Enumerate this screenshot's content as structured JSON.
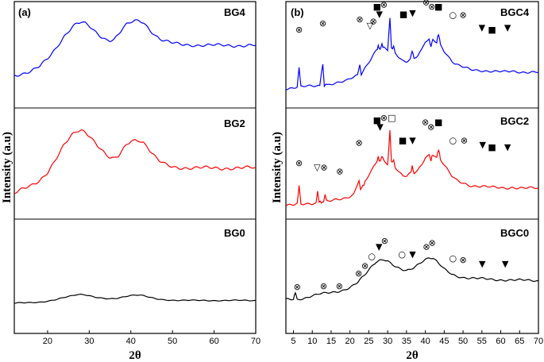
{
  "chart_data": [
    {
      "type": "line",
      "panel_label": "(a)",
      "xlabel": "2θ",
      "ylabel": "Intensity (a.u)",
      "xlim": [
        12,
        70
      ],
      "xticks": [
        20,
        30,
        40,
        50,
        60,
        70
      ],
      "legend": "none",
      "series": [
        {
          "name": "BG4",
          "color": "#0000ff",
          "x": [
            12,
            14,
            16,
            18,
            20,
            22,
            24,
            26,
            27,
            28,
            29,
            30,
            31,
            32,
            33,
            34,
            35,
            36,
            37,
            38,
            39,
            40,
            41,
            42,
            43,
            44,
            45,
            46,
            47,
            48,
            50,
            52,
            55,
            58,
            62,
            66,
            70
          ],
          "y": [
            0.05,
            0.08,
            0.12,
            0.2,
            0.35,
            0.55,
            0.78,
            0.95,
            1.0,
            1.02,
            1.0,
            0.95,
            0.88,
            0.82,
            0.76,
            0.72,
            0.7,
            0.72,
            0.8,
            0.9,
            0.98,
            1.02,
            1.05,
            1.06,
            1.03,
            0.95,
            0.86,
            0.78,
            0.72,
            0.68,
            0.64,
            0.62,
            0.61,
            0.6,
            0.6,
            0.6,
            0.6
          ]
        },
        {
          "name": "BG2",
          "color": "#ff0000",
          "x": [
            12,
            14,
            16,
            18,
            20,
            22,
            24,
            26,
            27,
            28,
            29,
            30,
            31,
            32,
            33,
            34,
            35,
            36,
            37,
            38,
            39,
            40,
            41,
            42,
            43,
            44,
            45,
            46,
            47,
            48,
            50,
            52,
            55,
            58,
            62,
            66,
            70
          ],
          "y": [
            0.05,
            0.1,
            0.14,
            0.22,
            0.38,
            0.6,
            0.82,
            0.97,
            1.02,
            1.04,
            1.02,
            0.97,
            0.9,
            0.82,
            0.74,
            0.66,
            0.6,
            0.58,
            0.62,
            0.72,
            0.82,
            0.88,
            0.9,
            0.9,
            0.86,
            0.78,
            0.68,
            0.6,
            0.54,
            0.5,
            0.46,
            0.45,
            0.44,
            0.44,
            0.44,
            0.44,
            0.44
          ]
        },
        {
          "name": "BG0",
          "color": "#000000",
          "x": [
            12,
            14,
            16,
            18,
            20,
            22,
            24,
            26,
            27,
            28,
            29,
            30,
            31,
            32,
            33,
            34,
            35,
            36,
            37,
            38,
            39,
            40,
            41,
            42,
            43,
            44,
            45,
            46,
            47,
            48,
            50,
            52,
            55,
            58,
            62,
            66,
            70
          ],
          "y": [
            0.0,
            0.02,
            0.04,
            0.07,
            0.12,
            0.2,
            0.32,
            0.44,
            0.5,
            0.52,
            0.5,
            0.44,
            0.38,
            0.32,
            0.28,
            0.25,
            0.24,
            0.26,
            0.3,
            0.36,
            0.42,
            0.46,
            0.48,
            0.47,
            0.43,
            0.36,
            0.3,
            0.25,
            0.22,
            0.2,
            0.18,
            0.17,
            0.16,
            0.16,
            0.16,
            0.16,
            0.16
          ]
        }
      ]
    },
    {
      "type": "line",
      "panel_label": "(b)",
      "xlabel": "2θ",
      "ylabel": "Intensity (a.u)",
      "xlim": [
        3,
        70
      ],
      "xticks": [
        5,
        10,
        15,
        20,
        25,
        30,
        35,
        40,
        45,
        50,
        55,
        60,
        65,
        70
      ],
      "legend": "none",
      "series": [
        {
          "name": "BGC4",
          "color": "#0000ff",
          "x": [
            3,
            5,
            6,
            6.5,
            7,
            9,
            12,
            12.8,
            13.2,
            14,
            17,
            19,
            20,
            21,
            22,
            22.6,
            23,
            24,
            25,
            26,
            27,
            27.5,
            28,
            28.5,
            29,
            30,
            30.6,
            31,
            31.6,
            32,
            33,
            34,
            35,
            36,
            36.5,
            37,
            38,
            39,
            40,
            41,
            41.5,
            42,
            43,
            43.5,
            44,
            45,
            46,
            47,
            48,
            49,
            50,
            52,
            55,
            58,
            61,
            63,
            66,
            70
          ],
          "y": [
            0.05,
            0.06,
            0.08,
            0.55,
            0.08,
            0.1,
            0.12,
            0.65,
            0.12,
            0.14,
            0.18,
            0.22,
            0.28,
            0.32,
            0.38,
            0.62,
            0.4,
            0.55,
            0.68,
            0.82,
            0.95,
            1.05,
            0.98,
            1.1,
            1.0,
            0.95,
            1.75,
            1.0,
            1.05,
            0.9,
            0.8,
            0.72,
            0.7,
            0.75,
            0.95,
            0.76,
            0.82,
            0.95,
            1.15,
            1.2,
            1.05,
            1.22,
            1.15,
            1.35,
            1.1,
            0.95,
            0.82,
            0.7,
            0.62,
            0.58,
            0.55,
            0.5,
            0.48,
            0.45,
            0.44,
            0.46,
            0.44,
            0.43
          ]
        },
        {
          "name": "BGC2",
          "color": "#ff0000",
          "x": [
            3,
            5,
            6,
            6.5,
            7,
            9,
            11,
            11.4,
            11.8,
            13,
            13.4,
            14,
            17,
            19,
            21,
            22.4,
            22.8,
            24,
            25,
            26,
            27,
            27.5,
            28,
            28.5,
            29,
            30,
            30.6,
            31,
            31.6,
            32,
            33,
            34,
            35,
            36,
            36.5,
            37,
            38,
            39,
            40,
            41,
            41.5,
            42,
            43,
            43.5,
            44,
            45,
            46,
            47,
            48,
            49,
            50,
            52,
            55,
            58,
            61,
            63,
            66,
            70
          ],
          "y": [
            0.05,
            0.06,
            0.08,
            0.5,
            0.08,
            0.1,
            0.12,
            0.35,
            0.12,
            0.14,
            0.3,
            0.14,
            0.18,
            0.22,
            0.32,
            0.62,
            0.4,
            0.58,
            0.72,
            0.85,
            1.0,
            1.12,
            1.02,
            1.15,
            1.05,
            0.98,
            1.7,
            1.02,
            1.05,
            0.92,
            0.8,
            0.72,
            0.7,
            0.75,
            0.92,
            0.76,
            0.82,
            0.95,
            1.12,
            1.18,
            1.05,
            1.2,
            1.12,
            1.3,
            1.08,
            0.95,
            0.82,
            0.7,
            0.62,
            0.58,
            0.55,
            0.5,
            0.48,
            0.45,
            0.44,
            0.46,
            0.44,
            0.43
          ]
        },
        {
          "name": "BGC0",
          "color": "#000000",
          "x": [
            3,
            5,
            5.5,
            6,
            8,
            10,
            12,
            14,
            16,
            18,
            20,
            22,
            23,
            24,
            25,
            26,
            27,
            28,
            29,
            30,
            31,
            32,
            33,
            34,
            35,
            36,
            37,
            38,
            39,
            40,
            41,
            42,
            43,
            44,
            45,
            46,
            47,
            48,
            50,
            52,
            55,
            58,
            62,
            66,
            70
          ],
          "y": [
            0.05,
            0.06,
            0.25,
            0.06,
            0.1,
            0.16,
            0.2,
            0.22,
            0.25,
            0.3,
            0.38,
            0.5,
            0.6,
            0.7,
            0.82,
            0.95,
            1.05,
            1.1,
            1.12,
            1.08,
            1.0,
            0.92,
            0.86,
            0.82,
            0.8,
            0.84,
            0.9,
            0.98,
            1.06,
            1.12,
            1.16,
            1.14,
            1.05,
            0.95,
            0.85,
            0.78,
            0.72,
            0.68,
            0.64,
            0.62,
            0.6,
            0.58,
            0.57,
            0.56,
            0.55
          ]
        }
      ]
    }
  ],
  "panels": {
    "a": {
      "label": "(a)",
      "xlabel": "2θ",
      "ylabel": "Intensity (a.u)",
      "sample_labels": [
        "BG4",
        "BG2",
        "BG0"
      ]
    },
    "b": {
      "label": "(b)",
      "xlabel": "2θ",
      "ylabel": "Intensity (a.u)",
      "sample_labels": [
        "BGC4",
        "BGC2",
        "BGC0"
      ]
    }
  },
  "phase_markers": {
    "BGC4": [
      {
        "symbol": "⊗",
        "x": 6.5,
        "y": 1.45
      },
      {
        "symbol": "⊗",
        "x": 12.8,
        "y": 1.6
      },
      {
        "symbol": "⊗",
        "x": 22.6,
        "y": 1.7
      },
      {
        "symbol": "▽",
        "x": 25.3,
        "y": 1.55
      },
      {
        "symbol": "⊗",
        "x": 26.2,
        "y": 1.65
      },
      {
        "symbol": "■",
        "x": 27.2,
        "y": 2.0
      },
      {
        "symbol": "▼",
        "x": 27.8,
        "y": 1.82
      },
      {
        "symbol": "⊗",
        "x": 29.0,
        "y": 2.05
      },
      {
        "symbol": "□",
        "x": 31.0,
        "y": 2.4
      },
      {
        "symbol": "■",
        "x": 34.2,
        "y": 1.82
      },
      {
        "symbol": "▼",
        "x": 36.6,
        "y": 1.85
      },
      {
        "symbol": "⊗",
        "x": 40.2,
        "y": 2.1
      },
      {
        "symbol": "⊗",
        "x": 41.7,
        "y": 2.0
      },
      {
        "symbol": "■",
        "x": 43.5,
        "y": 2.0
      },
      {
        "symbol": "○",
        "x": 47.3,
        "y": 1.8
      },
      {
        "symbol": "⊗",
        "x": 50.0,
        "y": 1.8
      },
      {
        "symbol": "▼",
        "x": 55.0,
        "y": 1.5
      },
      {
        "symbol": "■",
        "x": 57.7,
        "y": 1.45
      },
      {
        "symbol": "▼",
        "x": 61.8,
        "y": 1.5
      }
    ],
    "BGC2": [
      {
        "symbol": "⊗",
        "x": 6.5,
        "y": 1.0
      },
      {
        "symbol": "▽",
        "x": 11.3,
        "y": 0.9
      },
      {
        "symbol": "⊗",
        "x": 13.1,
        "y": 0.9
      },
      {
        "symbol": "⊗",
        "x": 17.3,
        "y": 0.82
      },
      {
        "symbol": "⊗",
        "x": 22.4,
        "y": 1.45
      },
      {
        "symbol": "■",
        "x": 27.2,
        "y": 1.95
      },
      {
        "symbol": "▼",
        "x": 28.0,
        "y": 1.8
      },
      {
        "symbol": "⊗",
        "x": 29.0,
        "y": 2.0
      },
      {
        "symbol": "□",
        "x": 31.1,
        "y": 2.0
      },
      {
        "symbol": "■",
        "x": 34.0,
        "y": 1.5
      },
      {
        "symbol": "▼",
        "x": 36.6,
        "y": 1.5
      },
      {
        "symbol": "⊗",
        "x": 40.0,
        "y": 1.9
      },
      {
        "symbol": "⊗",
        "x": 41.5,
        "y": 1.8
      },
      {
        "symbol": "■",
        "x": 43.5,
        "y": 1.9
      },
      {
        "symbol": "○",
        "x": 47.3,
        "y": 1.5
      },
      {
        "symbol": "⊗",
        "x": 50.3,
        "y": 1.5
      },
      {
        "symbol": "▼",
        "x": 55.2,
        "y": 1.4
      },
      {
        "symbol": "■",
        "x": 57.7,
        "y": 1.35
      },
      {
        "symbol": "▼",
        "x": 61.8,
        "y": 1.35
      }
    ],
    "BGC0": [
      {
        "symbol": "⊗",
        "x": 6.0,
        "y": 0.4
      },
      {
        "symbol": "⊗",
        "x": 13.0,
        "y": 0.42
      },
      {
        "symbol": "⊗",
        "x": 17.2,
        "y": 0.42
      },
      {
        "symbol": "⊗",
        "x": 22.3,
        "y": 0.75
      },
      {
        "symbol": "⊗",
        "x": 24.0,
        "y": 0.95
      },
      {
        "symbol": "○",
        "x": 25.8,
        "y": 1.2
      },
      {
        "symbol": "▼",
        "x": 27.7,
        "y": 1.45
      },
      {
        "symbol": "⊗",
        "x": 29.2,
        "y": 1.6
      },
      {
        "symbol": "○",
        "x": 33.8,
        "y": 1.25
      },
      {
        "symbol": "▼",
        "x": 36.6,
        "y": 1.25
      },
      {
        "symbol": "⊗",
        "x": 40.3,
        "y": 1.45
      },
      {
        "symbol": "⊗",
        "x": 41.8,
        "y": 1.55
      },
      {
        "symbol": "○",
        "x": 47.3,
        "y": 1.15
      },
      {
        "symbol": "⊗",
        "x": 50.0,
        "y": 1.1
      },
      {
        "symbol": "▼",
        "x": 55.1,
        "y": 1.0
      },
      {
        "symbol": "▼",
        "x": 61.2,
        "y": 1.0
      }
    ]
  },
  "colors": {
    "blue": "#0000ff",
    "red": "#ff0000",
    "black": "#000000"
  }
}
